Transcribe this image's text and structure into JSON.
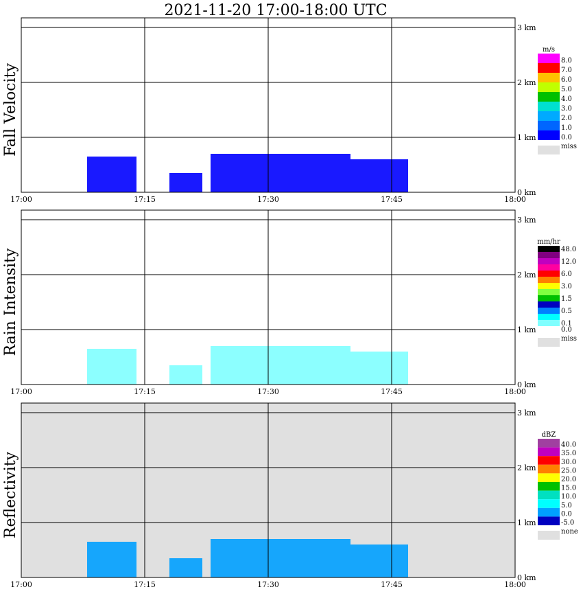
{
  "title": "2021-11-20   17:00-18:00 UTC",
  "x_ticks": [
    "17:00",
    "17:15",
    "17:30",
    "17:45",
    "18:00"
  ],
  "height_ticks": [
    "0 km",
    "1 km",
    "2 km",
    "3 km"
  ],
  "chart_data": [
    {
      "type": "heatmap",
      "ylabel": "Fall Velocity",
      "unit": "m/s",
      "missing_label": "miss",
      "missing_color": "#e0e0e0",
      "background": "#ffffff",
      "xlim": [
        "17:00",
        "18:00"
      ],
      "ylim_km": [
        0,
        3
      ],
      "colorbar": [
        {
          "label": "0.0",
          "color": "#0000ff"
        },
        {
          "label": "1.0",
          "color": "#0066ff"
        },
        {
          "label": "2.0",
          "color": "#00aaff"
        },
        {
          "label": "3.0",
          "color": "#00e0d0"
        },
        {
          "label": "4.0",
          "color": "#00c000"
        },
        {
          "label": "5.0",
          "color": "#c0ff00"
        },
        {
          "label": "6.0",
          "color": "#ffc000"
        },
        {
          "label": "7.0",
          "color": "#ff0000"
        },
        {
          "label": "8.0",
          "color": "#ff00ff"
        }
      ],
      "echo_segments": [
        {
          "start": "17:08",
          "end": "17:14",
          "top_km": 0.65,
          "color": "#0000ff"
        },
        {
          "start": "17:18",
          "end": "17:22",
          "top_km": 0.35,
          "color": "#0000ff"
        },
        {
          "start": "17:23",
          "end": "17:40",
          "top_km": 0.7,
          "color": "#0000ff"
        },
        {
          "start": "17:40",
          "end": "17:47",
          "top_km": 0.6,
          "color": "#0000ff"
        }
      ]
    },
    {
      "type": "heatmap",
      "ylabel": "Rain Intensity",
      "unit": "mm/hr",
      "missing_label": "miss",
      "missing_color": "#e0e0e0",
      "background": "#ffffff",
      "xlim": [
        "17:00",
        "18:00"
      ],
      "ylim_km": [
        0,
        3
      ],
      "colorbar": [
        {
          "label": "0.0",
          "color": "#ffffff"
        },
        {
          "label": "0.1",
          "color": "#80ffff"
        },
        {
          "label": "",
          "color": "#00ffff"
        },
        {
          "label": "0.5",
          "color": "#0080ff"
        },
        {
          "label": "",
          "color": "#0000c0"
        },
        {
          "label": "1.5",
          "color": "#00c000"
        },
        {
          "label": "",
          "color": "#80ff40"
        },
        {
          "label": "3.0",
          "color": "#ffff00"
        },
        {
          "label": "",
          "color": "#ff8000"
        },
        {
          "label": "6.0",
          "color": "#ff0000"
        },
        {
          "label": "",
          "color": "#ff00a0"
        },
        {
          "label": "12.0",
          "color": "#c000c0"
        },
        {
          "label": "",
          "color": "#800080"
        },
        {
          "label": "48.0",
          "color": "#000000"
        }
      ],
      "echo_segments": [
        {
          "start": "17:08",
          "end": "17:14",
          "top_km": 0.65,
          "color": "#80ffff"
        },
        {
          "start": "17:18",
          "end": "17:22",
          "top_km": 0.35,
          "color": "#80ffff"
        },
        {
          "start": "17:23",
          "end": "17:40",
          "top_km": 0.7,
          "color": "#80ffff"
        },
        {
          "start": "17:40",
          "end": "17:47",
          "top_km": 0.6,
          "color": "#80ffff"
        }
      ]
    },
    {
      "type": "heatmap",
      "ylabel": "Reflectivity",
      "unit": "dBZ",
      "missing_label": "none",
      "missing_color": "#e0e0e0",
      "background": "#e0e0e0",
      "xlim": [
        "17:00",
        "18:00"
      ],
      "ylim_km": [
        0,
        3
      ],
      "colorbar": [
        {
          "label": "-5.0",
          "color": "#0000c0"
        },
        {
          "label": "0.0",
          "color": "#00a0ff"
        },
        {
          "label": "5.0",
          "color": "#00ffff"
        },
        {
          "label": "10.0",
          "color": "#00e0c0"
        },
        {
          "label": "15.0",
          "color": "#00c000"
        },
        {
          "label": "20.0",
          "color": "#ffff00"
        },
        {
          "label": "25.0",
          "color": "#ff8000"
        },
        {
          "label": "30.0",
          "color": "#ff0000"
        },
        {
          "label": "35.0",
          "color": "#c000c0"
        },
        {
          "label": "40.0",
          "color": "#a040a0"
        }
      ],
      "echo_segments": [
        {
          "start": "17:08",
          "end": "17:14",
          "top_km": 0.65,
          "color": "#00a0ff"
        },
        {
          "start": "17:18",
          "end": "17:22",
          "top_km": 0.35,
          "color": "#00a0ff"
        },
        {
          "start": "17:23",
          "end": "17:40",
          "top_km": 0.7,
          "color": "#00a0ff"
        },
        {
          "start": "17:40",
          "end": "17:47",
          "top_km": 0.6,
          "color": "#00a0ff"
        }
      ]
    }
  ]
}
